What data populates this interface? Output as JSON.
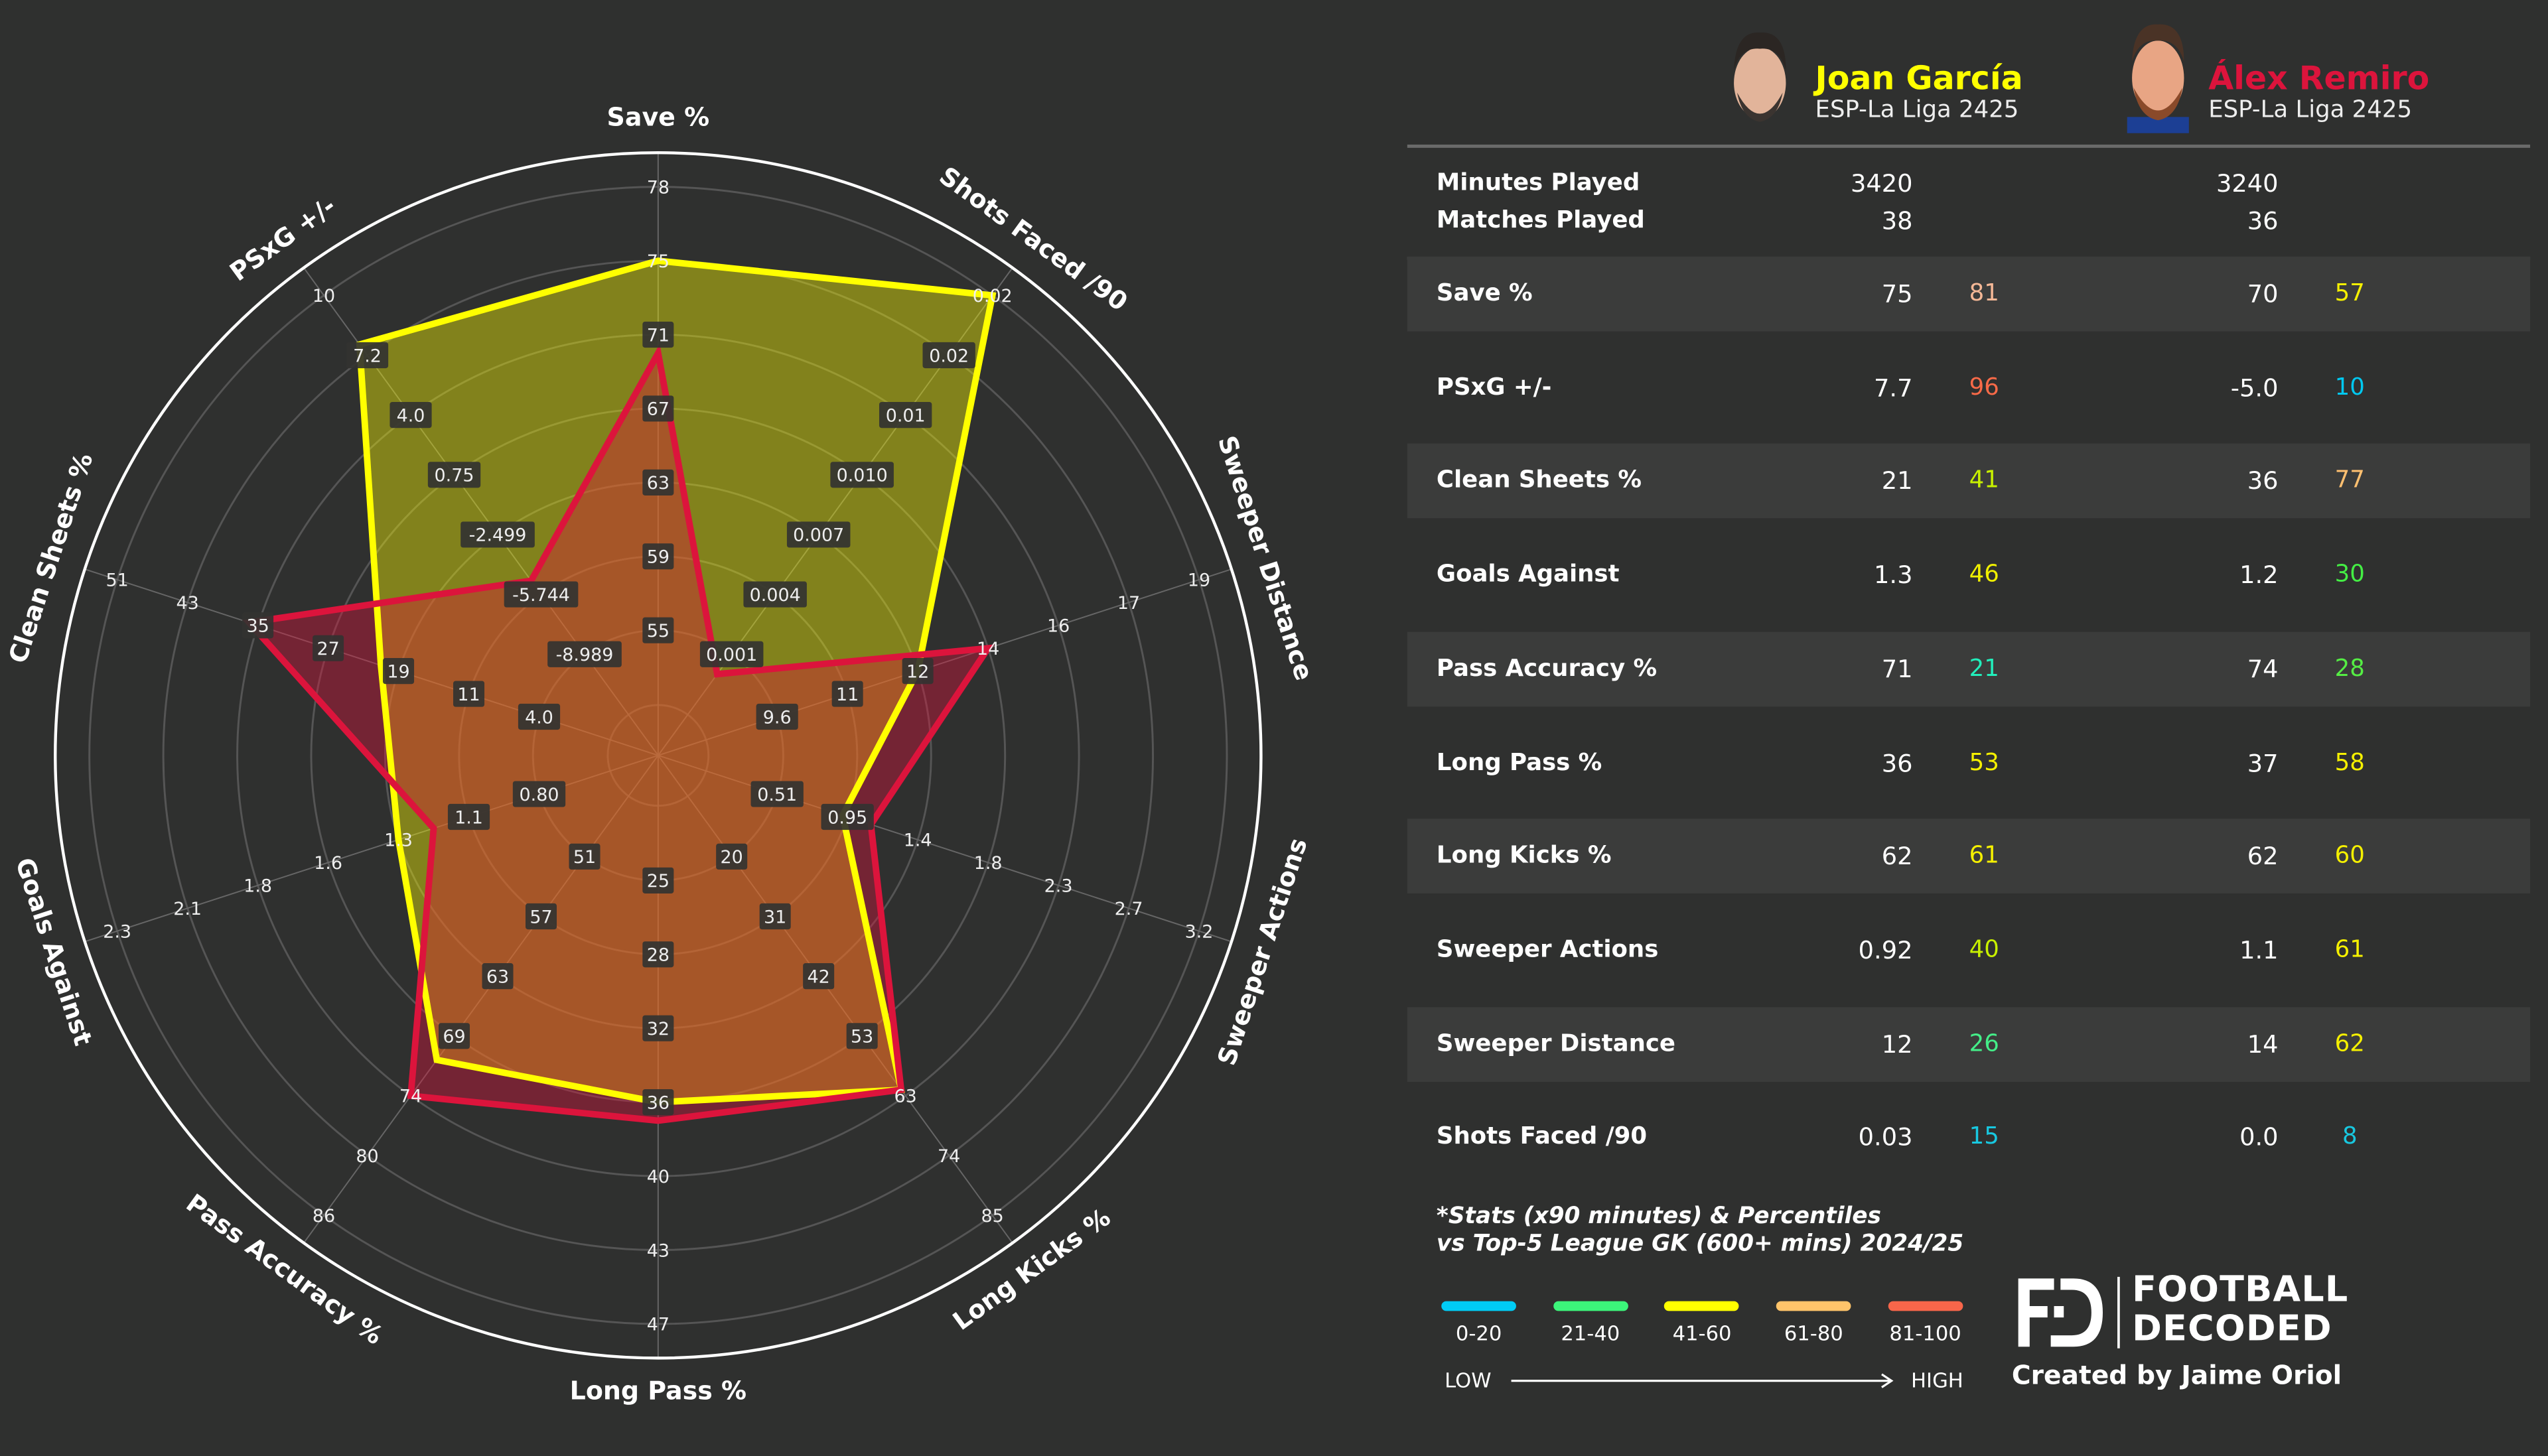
{
  "players": [
    {
      "name": "Joan García",
      "league": "ESP-La Liga 2425",
      "color": "#ffff00",
      "minutes_played": "3420",
      "matches_played": "38"
    },
    {
      "name": "Álex Remiro",
      "league": "ESP-La Liga 2425",
      "color": "#dc143c",
      "minutes_played": "3240",
      "matches_played": "36"
    }
  ],
  "summary_labels": {
    "minutes_played": "Minutes Played",
    "matches_played": "Matches Played"
  },
  "table": {
    "rows": [
      {
        "label": "Save %",
        "p1": {
          "value": "75",
          "pct": "81",
          "color": "#f5b896"
        },
        "p2": {
          "value": "70",
          "pct": "57",
          "color": "#f5f000"
        }
      },
      {
        "label": "PSxG +/-",
        "p1": {
          "value": "7.7",
          "pct": "96",
          "color": "#fa6a48"
        },
        "p2": {
          "value": "-5.0",
          "pct": "10",
          "color": "#00c8f0"
        }
      },
      {
        "label": "Clean Sheets %",
        "p1": {
          "value": "21",
          "pct": "41",
          "color": "#c8f000"
        },
        "p2": {
          "value": "36",
          "pct": "77",
          "color": "#ffc070"
        }
      },
      {
        "label": "Goals Against",
        "p1": {
          "value": "1.3",
          "pct": "46",
          "color": "#f0f000"
        },
        "p2": {
          "value": "1.2",
          "pct": "30",
          "color": "#44ee44"
        }
      },
      {
        "label": "Pass Accuracy %",
        "p1": {
          "value": "71",
          "pct": "21",
          "color": "#22eebb"
        },
        "p2": {
          "value": "74",
          "pct": "28",
          "color": "#55ee44"
        }
      },
      {
        "label": "Long Pass %",
        "p1": {
          "value": "36",
          "pct": "53",
          "color": "#f5f000"
        },
        "p2": {
          "value": "37",
          "pct": "58",
          "color": "#f5f000"
        }
      },
      {
        "label": "Long Kicks %",
        "p1": {
          "value": "62",
          "pct": "61",
          "color": "#f5f000"
        },
        "p2": {
          "value": "62",
          "pct": "60",
          "color": "#f5f000"
        }
      },
      {
        "label": "Sweeper Actions",
        "p1": {
          "value": "0.92",
          "pct": "40",
          "color": "#c8f000"
        },
        "p2": {
          "value": "1.1",
          "pct": "61",
          "color": "#f5f000"
        }
      },
      {
        "label": "Sweeper Distance",
        "p1": {
          "value": "12",
          "pct": "26",
          "color": "#44ee88"
        },
        "p2": {
          "value": "14",
          "pct": "62",
          "color": "#f5f000"
        }
      },
      {
        "label": "Shots Faced /90",
        "p1": {
          "value": "0.03",
          "pct": "15",
          "color": "#18c8e0"
        },
        "p2": {
          "value": "0.0",
          "pct": "8",
          "color": "#18c8e0"
        }
      }
    ]
  },
  "footnote": {
    "line1": "*Stats (x90 minutes) & Percentiles",
    "line2": "vs Top-5 League GK (600+ mins) 2024/25"
  },
  "legend": {
    "bins": [
      {
        "label": "0-20",
        "color": "#00ccf5"
      },
      {
        "label": "21-40",
        "color": "#3cf57a"
      },
      {
        "label": "41-60",
        "color": "#ffff00"
      },
      {
        "label": "61-80",
        "color": "#ffc46a"
      },
      {
        "label": "81-100",
        "color": "#f8664a"
      }
    ],
    "low": "LOW",
    "high": "HIGH"
  },
  "branding": {
    "logo_text_1": "FOOTBALL",
    "logo_text_2": "DECODED",
    "credit": "Created by Jaime Oriol"
  },
  "chart_data": {
    "type": "radar",
    "grid": true,
    "axes": [
      {
        "name": "Save %",
        "ticks": [
          "55",
          "59",
          "63",
          "67",
          "71",
          "75",
          "78"
        ]
      },
      {
        "name": "Shots Faced /90",
        "ticks": [
          "0.001",
          "0.004",
          "0.007",
          "0.010",
          "0.01",
          "0.02",
          "0.02"
        ]
      },
      {
        "name": "Sweeper Distance",
        "ticks": [
          "9.6",
          "11",
          "12",
          "14",
          "16",
          "17",
          "19"
        ]
      },
      {
        "name": "Sweeper Actions",
        "ticks": [
          "0.51",
          "0.95",
          "1.4",
          "1.8",
          "2.3",
          "2.7",
          "3.2"
        ]
      },
      {
        "name": "Long Kicks %",
        "ticks": [
          "20",
          "31",
          "42",
          "53",
          "63",
          "74",
          "85"
        ]
      },
      {
        "name": "Long Pass %",
        "ticks": [
          "25",
          "28",
          "32",
          "36",
          "40",
          "43",
          "47"
        ]
      },
      {
        "name": "Pass Accuracy %",
        "ticks": [
          "51",
          "57",
          "63",
          "69",
          "74",
          "80",
          "86"
        ]
      },
      {
        "name": "Goals Against",
        "ticks": [
          "0.80",
          "1.1",
          "1.3",
          "1.6",
          "1.8",
          "2.1",
          "2.3"
        ]
      },
      {
        "name": "Clean Sheets %",
        "ticks": [
          "4.0",
          "11",
          "19",
          "27",
          "35",
          "43",
          "51"
        ]
      },
      {
        "name": "PSxG +/-",
        "ticks": [
          "-8.989",
          "-5.744",
          "-2.499",
          "0.75",
          "4.0",
          "7.2",
          "10"
        ]
      }
    ],
    "series": [
      {
        "name": "Joan García",
        "color": "#ffff00",
        "values": [
          75,
          0.03,
          12,
          0.92,
          62,
          36,
          71,
          1.3,
          21,
          7.7
        ]
      },
      {
        "name": "Álex Remiro",
        "color": "#dc143c",
        "values": [
          70,
          0.0,
          14,
          1.1,
          62,
          37,
          74,
          1.2,
          36,
          -5.0
        ]
      }
    ]
  }
}
